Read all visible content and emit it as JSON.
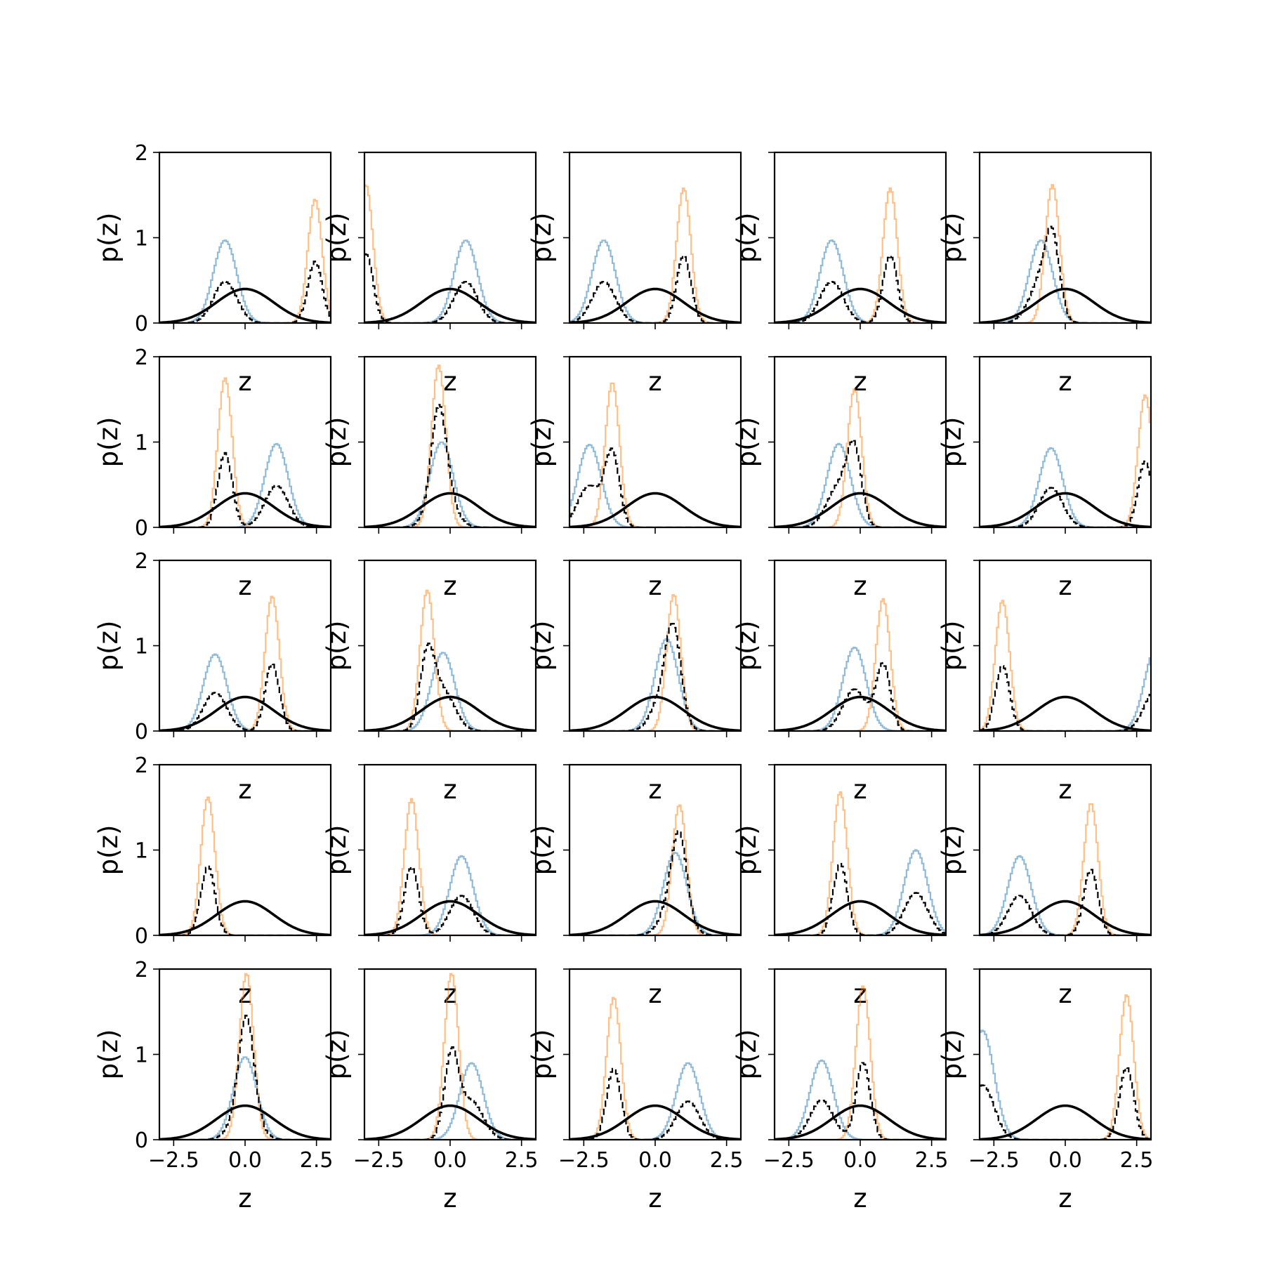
{
  "chart_data": {
    "type": "histogram-grid",
    "rows": 5,
    "cols": 5,
    "xlabel": "z",
    "ylabel": "p(z)",
    "xlim": [
      -3.0,
      3.0
    ],
    "ylim": [
      0,
      2
    ],
    "xticks": [
      -2.5,
      0.0,
      2.5
    ],
    "xtick_labels": [
      "−2.5",
      "0.0",
      "2.5"
    ],
    "yticks": [
      0,
      1,
      2
    ],
    "ytick_labels": [
      "0",
      "1",
      "2"
    ],
    "colors": {
      "component_1": "#1f77b4",
      "component_2": "#ff7f0e",
      "mixture": "#000000",
      "prior": "#000000"
    },
    "prior": {
      "type": "standard-normal",
      "mean": 0,
      "std": 1
    },
    "panels": [
      {
        "c1": {
          "mu": -0.7,
          "peak": 0.97
        },
        "c2": {
          "mu": 2.45,
          "peak": 1.45
        }
      },
      {
        "c1": {
          "mu": 0.55,
          "peak": 0.97
        },
        "c2": {
          "mu": -2.95,
          "peak": 1.62
        }
      },
      {
        "c1": {
          "mu": -1.8,
          "peak": 0.97
        },
        "c2": {
          "mu": 1.0,
          "peak": 1.58
        }
      },
      {
        "c1": {
          "mu": -1.0,
          "peak": 0.97
        },
        "c2": {
          "mu": 1.05,
          "peak": 1.58
        }
      },
      {
        "c1": {
          "mu": -0.85,
          "peak": 0.97
        },
        "c2": {
          "mu": -0.45,
          "peak": 1.62
        }
      },
      {
        "c1": {
          "mu": 1.1,
          "peak": 0.98
        },
        "c2": {
          "mu": -0.7,
          "peak": 1.75
        }
      },
      {
        "c1": {
          "mu": -0.3,
          "peak": 1.0
        },
        "c2": {
          "mu": -0.4,
          "peak": 1.9
        }
      },
      {
        "c1": {
          "mu": -2.3,
          "peak": 0.97
        },
        "c2": {
          "mu": -1.5,
          "peak": 1.7
        }
      },
      {
        "c1": {
          "mu": -0.75,
          "peak": 0.98
        },
        "c2": {
          "mu": -0.2,
          "peak": 1.62
        }
      },
      {
        "c1": {
          "mu": -0.5,
          "peak": 0.93
        },
        "c2": {
          "mu": 2.8,
          "peak": 1.55
        }
      },
      {
        "c1": {
          "mu": -1.05,
          "peak": 0.9
        },
        "c2": {
          "mu": 0.95,
          "peak": 1.58
        }
      },
      {
        "c1": {
          "mu": -0.25,
          "peak": 0.92
        },
        "c2": {
          "mu": -0.8,
          "peak": 1.65
        }
      },
      {
        "c1": {
          "mu": 0.4,
          "peak": 1.08
        },
        "c2": {
          "mu": 0.65,
          "peak": 1.6
        }
      },
      {
        "c1": {
          "mu": -0.2,
          "peak": 0.98
        },
        "c2": {
          "mu": 0.8,
          "peak": 1.55
        }
      },
      {
        "c1": {
          "mu": 3.2,
          "peak": 1.0
        },
        "c2": {
          "mu": -2.2,
          "peak": 1.53
        }
      },
      {
        "c1": {
          "mu": -5.0,
          "peak": 0.0
        },
        "c2": {
          "mu": -1.3,
          "peak": 1.62
        }
      },
      {
        "c1": {
          "mu": 0.4,
          "peak": 0.93
        },
        "c2": {
          "mu": -1.35,
          "peak": 1.6
        }
      },
      {
        "c1": {
          "mu": 0.7,
          "peak": 0.97
        },
        "c2": {
          "mu": 0.85,
          "peak": 1.53
        }
      },
      {
        "c1": {
          "mu": 1.95,
          "peak": 1.0
        },
        "c2": {
          "mu": -0.7,
          "peak": 1.68
        }
      },
      {
        "c1": {
          "mu": -1.6,
          "peak": 0.93
        },
        "c2": {
          "mu": 0.9,
          "peak": 1.55
        }
      },
      {
        "c1": {
          "mu": 0.0,
          "peak": 0.97
        },
        "c2": {
          "mu": 0.05,
          "peak": 1.95
        }
      },
      {
        "c1": {
          "mu": 0.75,
          "peak": 0.9
        },
        "c2": {
          "mu": 0.05,
          "peak": 1.95
        }
      },
      {
        "c1": {
          "mu": 1.15,
          "peak": 0.9
        },
        "c2": {
          "mu": -1.45,
          "peak": 1.67
        }
      },
      {
        "c1": {
          "mu": -1.35,
          "peak": 0.93
        },
        "c2": {
          "mu": 0.1,
          "peak": 1.8
        }
      },
      {
        "c1": {
          "mu": -2.9,
          "peak": 1.28
        },
        "c2": {
          "mu": 2.15,
          "peak": 1.7
        }
      }
    ]
  }
}
